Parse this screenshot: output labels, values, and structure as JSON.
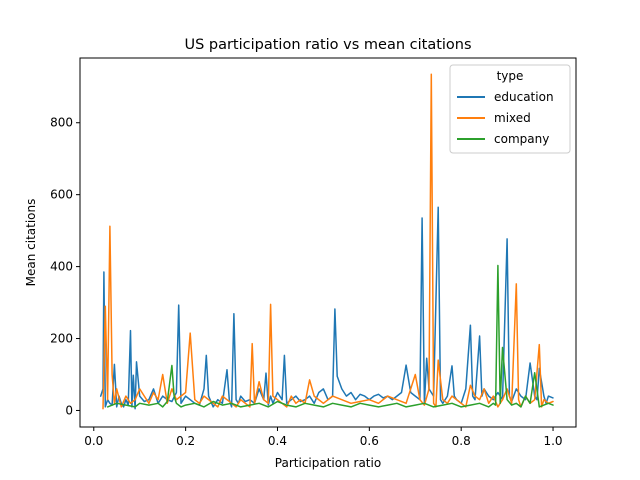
{
  "chart_data": {
    "type": "line",
    "title": "US participation ratio vs mean citations",
    "xlabel": "Participation ratio",
    "ylabel": "Mean citations",
    "xlim": [
      -0.03,
      1.05
    ],
    "ylim": [
      -46,
      980
    ],
    "xticks": [
      0.0,
      0.2,
      0.4,
      0.6,
      0.8,
      1.0
    ],
    "xtick_labels": [
      "0.0",
      "0.2",
      "0.4",
      "0.6",
      "0.8",
      "1.0"
    ],
    "yticks": [
      0,
      200,
      400,
      600,
      800
    ],
    "ytick_labels": [
      "0",
      "200",
      "400",
      "600",
      "800"
    ],
    "grid": false,
    "legend": {
      "title": "type",
      "placement": "top-right"
    },
    "series": [
      {
        "name": "education",
        "color": "#1f77b4",
        "x": [
          0.015,
          0.02,
          0.022,
          0.025,
          0.03,
          0.035,
          0.04,
          0.045,
          0.05,
          0.055,
          0.06,
          0.065,
          0.07,
          0.075,
          0.08,
          0.083,
          0.086,
          0.09,
          0.093,
          0.1,
          0.11,
          0.12,
          0.13,
          0.14,
          0.15,
          0.16,
          0.17,
          0.18,
          0.185,
          0.19,
          0.2,
          0.21,
          0.22,
          0.23,
          0.24,
          0.245,
          0.25,
          0.26,
          0.27,
          0.28,
          0.29,
          0.295,
          0.3,
          0.305,
          0.31,
          0.315,
          0.32,
          0.33,
          0.34,
          0.35,
          0.36,
          0.37,
          0.375,
          0.38,
          0.385,
          0.39,
          0.4,
          0.41,
          0.415,
          0.42,
          0.43,
          0.44,
          0.45,
          0.46,
          0.47,
          0.48,
          0.49,
          0.5,
          0.51,
          0.52,
          0.525,
          0.53,
          0.54,
          0.55,
          0.56,
          0.57,
          0.58,
          0.59,
          0.6,
          0.61,
          0.62,
          0.63,
          0.64,
          0.65,
          0.66,
          0.67,
          0.68,
          0.69,
          0.7,
          0.71,
          0.715,
          0.72,
          0.725,
          0.73,
          0.74,
          0.75,
          0.755,
          0.76,
          0.77,
          0.78,
          0.785,
          0.79,
          0.8,
          0.81,
          0.82,
          0.825,
          0.83,
          0.84,
          0.845,
          0.85,
          0.86,
          0.87,
          0.88,
          0.89,
          0.9,
          0.905,
          0.91,
          0.92,
          0.93,
          0.94,
          0.95,
          0.96,
          0.965,
          0.97,
          0.98,
          0.985,
          0.99,
          1.0
        ],
        "y": [
          40,
          60,
          385,
          10,
          30,
          20,
          15,
          128,
          10,
          40,
          20,
          10,
          30,
          15,
          222,
          10,
          98,
          5,
          135,
          40,
          25,
          30,
          60,
          20,
          40,
          30,
          25,
          50,
          293,
          20,
          40,
          30,
          20,
          15,
          60,
          153,
          40,
          10,
          30,
          20,
          113,
          30,
          10,
          269,
          30,
          20,
          40,
          25,
          30,
          20,
          60,
          30,
          104,
          15,
          40,
          20,
          50,
          30,
          153,
          20,
          30,
          40,
          25,
          30,
          40,
          20,
          50,
          60,
          30,
          40,
          282,
          95,
          60,
          40,
          50,
          30,
          45,
          40,
          30,
          40,
          45,
          35,
          40,
          30,
          40,
          50,
          126,
          50,
          40,
          30,
          535,
          20,
          145,
          60,
          40,
          565,
          30,
          20,
          40,
          124,
          40,
          30,
          20,
          60,
          237,
          40,
          30,
          207,
          40,
          60,
          40,
          30,
          50,
          30,
          477,
          40,
          25,
          60,
          40,
          30,
          132,
          40,
          30,
          117,
          40,
          20,
          40,
          35
        ]
      },
      {
        "name": "mixed",
        "color": "#ff7f0e",
        "x": [
          0.02,
          0.025,
          0.03,
          0.035,
          0.04,
          0.045,
          0.05,
          0.06,
          0.07,
          0.08,
          0.09,
          0.1,
          0.11,
          0.12,
          0.13,
          0.14,
          0.15,
          0.16,
          0.17,
          0.18,
          0.19,
          0.2,
          0.21,
          0.22,
          0.23,
          0.24,
          0.25,
          0.26,
          0.27,
          0.28,
          0.29,
          0.3,
          0.31,
          0.32,
          0.33,
          0.34,
          0.345,
          0.35,
          0.36,
          0.37,
          0.38,
          0.385,
          0.39,
          0.4,
          0.41,
          0.42,
          0.43,
          0.44,
          0.45,
          0.46,
          0.47,
          0.48,
          0.5,
          0.52,
          0.54,
          0.56,
          0.58,
          0.6,
          0.62,
          0.64,
          0.66,
          0.68,
          0.7,
          0.71,
          0.72,
          0.73,
          0.735,
          0.74,
          0.745,
          0.75,
          0.76,
          0.77,
          0.78,
          0.79,
          0.8,
          0.81,
          0.82,
          0.83,
          0.84,
          0.85,
          0.86,
          0.87,
          0.88,
          0.89,
          0.9,
          0.91,
          0.92,
          0.925,
          0.93,
          0.94,
          0.95,
          0.96,
          0.97,
          0.975,
          0.98,
          0.99,
          1.0
        ],
        "y": [
          5,
          290,
          30,
          512,
          100,
          20,
          60,
          10,
          40,
          20,
          30,
          60,
          40,
          20,
          50,
          30,
          100,
          20,
          60,
          30,
          40,
          50,
          215,
          30,
          20,
          40,
          30,
          20,
          10,
          40,
          30,
          20,
          10,
          30,
          20,
          10,
          186,
          20,
          80,
          30,
          20,
          295,
          40,
          30,
          20,
          10,
          40,
          20,
          30,
          20,
          85,
          40,
          20,
          40,
          30,
          20,
          25,
          30,
          20,
          40,
          30,
          20,
          100,
          30,
          15,
          60,
          935,
          20,
          10,
          140,
          30,
          20,
          40,
          30,
          20,
          10,
          70,
          40,
          30,
          60,
          20,
          40,
          10,
          30,
          60,
          20,
          352,
          30,
          10,
          40,
          20,
          30,
          183,
          10,
          30,
          20,
          25
        ]
      },
      {
        "name": "company",
        "color": "#2ca02c",
        "x": [
          0.03,
          0.05,
          0.07,
          0.09,
          0.1,
          0.12,
          0.14,
          0.15,
          0.16,
          0.17,
          0.175,
          0.18,
          0.19,
          0.2,
          0.22,
          0.24,
          0.26,
          0.28,
          0.3,
          0.32,
          0.34,
          0.36,
          0.38,
          0.4,
          0.42,
          0.44,
          0.46,
          0.48,
          0.5,
          0.52,
          0.54,
          0.56,
          0.58,
          0.6,
          0.62,
          0.64,
          0.66,
          0.68,
          0.7,
          0.72,
          0.74,
          0.76,
          0.78,
          0.8,
          0.82,
          0.84,
          0.86,
          0.87,
          0.875,
          0.88,
          0.885,
          0.89,
          0.9,
          0.91,
          0.92,
          0.93,
          0.94,
          0.95,
          0.96,
          0.97,
          0.98,
          0.99,
          1.0
        ],
        "y": [
          10,
          20,
          15,
          10,
          20,
          15,
          20,
          10,
          25,
          125,
          40,
          20,
          10,
          15,
          20,
          10,
          25,
          15,
          20,
          10,
          15,
          20,
          10,
          25,
          15,
          10,
          20,
          15,
          10,
          20,
          15,
          10,
          20,
          15,
          10,
          15,
          20,
          10,
          15,
          20,
          10,
          15,
          20,
          10,
          15,
          20,
          10,
          20,
          15,
          403,
          20,
          175,
          30,
          15,
          20,
          10,
          40,
          20,
          105,
          10,
          15,
          20,
          15
        ]
      }
    ]
  }
}
